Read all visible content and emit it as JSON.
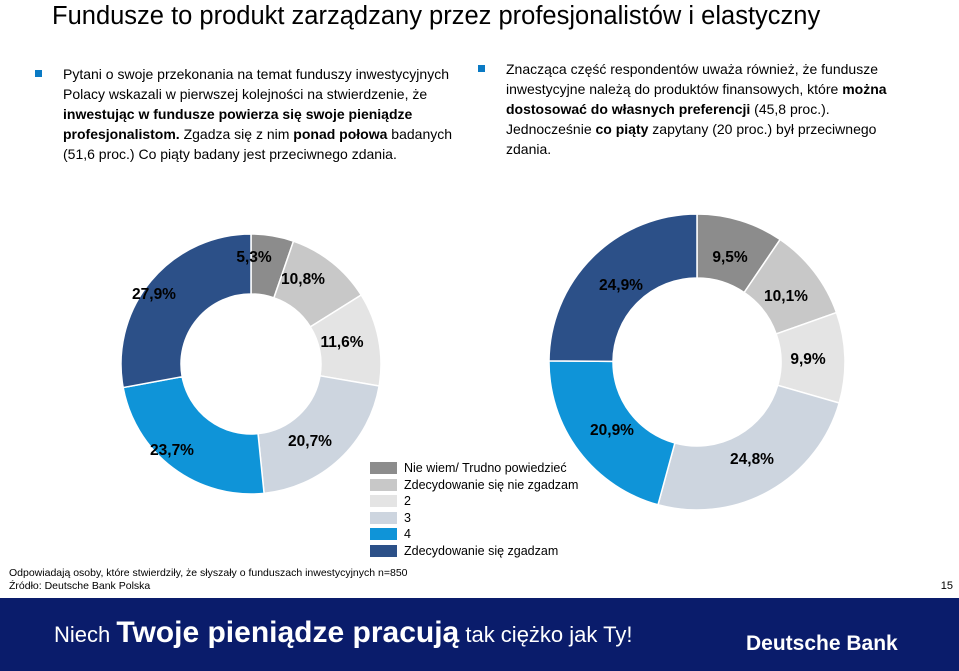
{
  "title": "Fundusze to produkt zarządzany przez profesjonalistów i elastyczny",
  "bullets": [
    {
      "html": "Pytani o swoje przekonania na temat funduszy inwestycyjnych Polacy wskazali w pierwszej kolejności na stwierdzenie, że <b>inwestując w fundusze powierza się swoje pieniądze profesjonalistom.</b> Zgadza się z nim <b>ponad połowa</b> badanych (51,6 proc.) Co piąty badany jest przeciwnego zdania."
    },
    {
      "html": "Znacząca część respondentów uważa również, że fundusze inwestycyjne należą do produktów finansowych, które <b>można dostosować do własnych preferencji</b> (45,8 proc.). Jednocześnie <b>co piąty</b> zapytany (20 proc.) był przeciwnego zdania."
    }
  ],
  "chart_data": [
    {
      "type": "pie",
      "variant": "donut",
      "categories": [
        "Nie wiem/ Trudno powiedzieć",
        "Zdecydowanie się nie zgadzam",
        "2",
        "3",
        "4",
        "Zdecydowanie się zgadzam"
      ],
      "values": [
        5.3,
        10.8,
        11.6,
        20.7,
        23.7,
        27.9
      ],
      "labels": [
        "5,3%",
        "10,8%",
        "11,6%",
        "20,7%",
        "23,7%",
        "27,9%"
      ]
    },
    {
      "type": "pie",
      "variant": "donut",
      "categories": [
        "Nie wiem/ Trudno powiedzieć",
        "Zdecydowanie się nie zgadzam",
        "2",
        "3",
        "4",
        "Zdecydowanie się zgadzam"
      ],
      "values": [
        9.5,
        10.1,
        9.9,
        24.8,
        20.9,
        24.9
      ],
      "labels": [
        "9,5%",
        "10,1%",
        "9,9%",
        "24,8%",
        "20,9%",
        "24,9%"
      ]
    }
  ],
  "legend": {
    "items": [
      {
        "label": "Nie wiem/ Trudno powiedzieć",
        "color": "#8c8c8c"
      },
      {
        "label": "Zdecydowanie się nie zgadzam",
        "color": "#c8c8c8"
      },
      {
        "label": "2",
        "color": "#e4e4e4"
      },
      {
        "label": "3",
        "color": "#cdd5df"
      },
      {
        "label": "4",
        "color": "#0f94d8"
      },
      {
        "label": "Zdecydowanie się zgadzam",
        "color": "#2c5088"
      }
    ]
  },
  "footnote1": "Odpowiadają osoby, które stwierdziły, że słyszały o funduszach inwestycyjnych  n=850",
  "footnote2": "Źródło: Deutsche Bank Polska",
  "page_number": "15",
  "banner": {
    "slogan_part1": "Niech ",
    "slogan_part2": "Twoje pieniądze pracują",
    "slogan_part3": " tak ciężko jak Ty!",
    "brand": "Deutsche Bank"
  }
}
